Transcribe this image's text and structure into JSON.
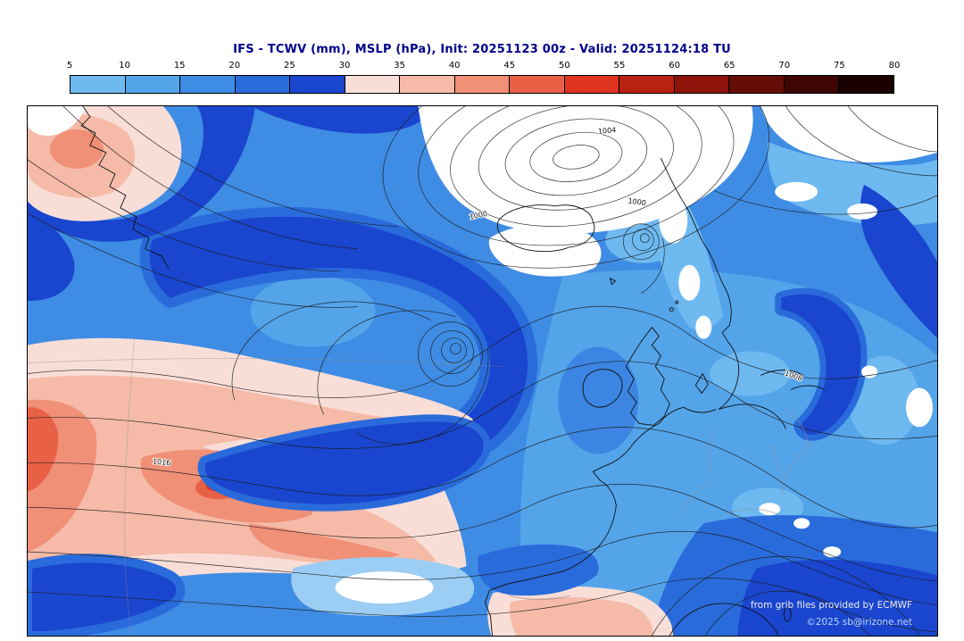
{
  "title": "IFS - TCWV (mm), MSLP (hPa), Init: 20251123 00z - Valid: 20251124:18 TU",
  "colorbar": {
    "ticks": [
      5,
      10,
      15,
      20,
      25,
      30,
      35,
      40,
      45,
      50,
      55,
      60,
      65,
      70,
      75,
      80
    ],
    "colors": [
      "#6fb9f1",
      "#54a4ea",
      "#3f8ce4",
      "#2a6bdb",
      "#1a45ce",
      "#f9ded8",
      "#f5bba8",
      "#f09077",
      "#e86147",
      "#de3420",
      "#b92112",
      "#8e130a",
      "#640c06",
      "#3d0603",
      "#190201"
    ]
  },
  "map": {
    "contour_labels": [
      "1000",
      "1000",
      "1004",
      "1008",
      "1016"
    ],
    "credits": {
      "line1": "from grib files provided by ECMWF",
      "line2": "©2025 sb@irizone.net"
    }
  }
}
